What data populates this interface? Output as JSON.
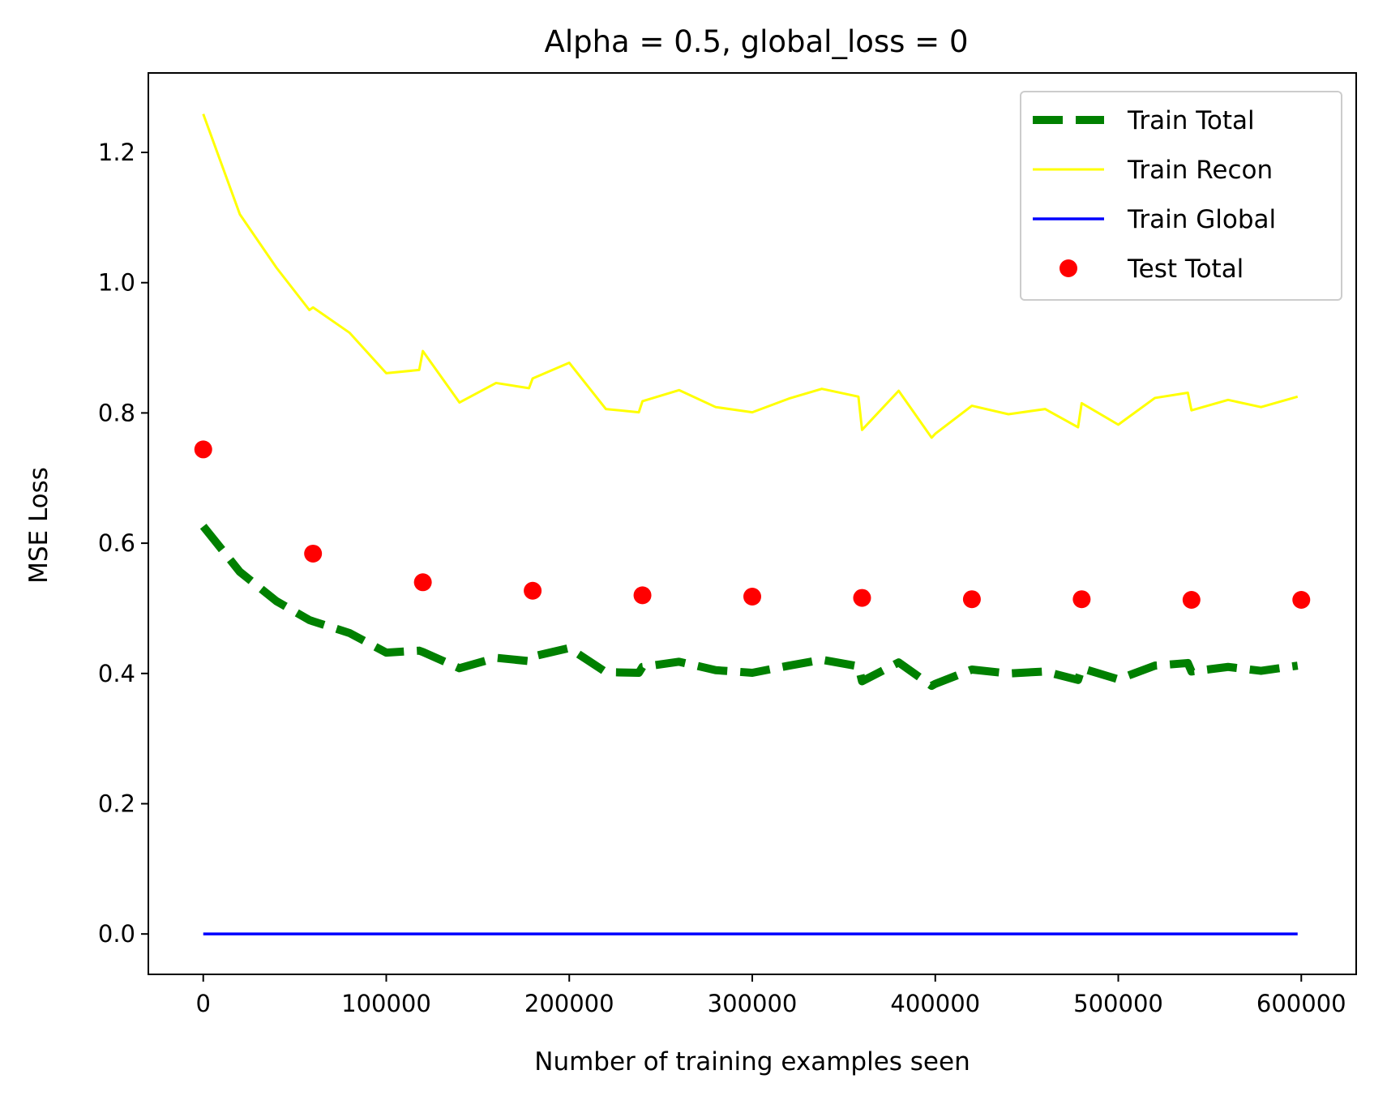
{
  "chart_data": {
    "type": "line",
    "title": "Alpha = 0.5, global_loss = 0",
    "xlabel": "Number of training examples seen",
    "ylabel": "MSE Loss",
    "xlim": [
      -30000,
      630000
    ],
    "ylim": [
      -0.062,
      1.322
    ],
    "xticks": [
      0,
      100000,
      200000,
      300000,
      400000,
      500000,
      600000
    ],
    "xtick_labels": [
      "0",
      "100000",
      "200000",
      "300000",
      "400000",
      "500000",
      "600000"
    ],
    "yticks": [
      0.0,
      0.2,
      0.4,
      0.6,
      0.8,
      1.0,
      1.2
    ],
    "ytick_labels": [
      "0.0",
      "0.2",
      "0.4",
      "0.6",
      "0.8",
      "1.0",
      "1.2"
    ],
    "legend_position": "top-right",
    "series": [
      {
        "name": "Train Total",
        "style": "dashed",
        "color": "#008000",
        "x": [
          0,
          20000,
          40000,
          58000,
          60000,
          80000,
          100000,
          118000,
          120000,
          140000,
          160000,
          178000,
          180000,
          200000,
          220000,
          238000,
          240000,
          260000,
          280000,
          300000,
          320000,
          338000,
          358000,
          360000,
          380000,
          398000,
          400000,
          420000,
          440000,
          460000,
          478000,
          480000,
          500000,
          520000,
          538000,
          540000,
          560000,
          578000,
          598000
        ],
        "values": [
          0.626,
          0.556,
          0.511,
          0.482,
          0.48,
          0.462,
          0.432,
          0.435,
          0.433,
          0.408,
          0.424,
          0.419,
          0.426,
          0.439,
          0.402,
          0.401,
          0.41,
          0.418,
          0.405,
          0.401,
          0.412,
          0.421,
          0.411,
          0.388,
          0.417,
          0.381,
          0.384,
          0.406,
          0.4,
          0.403,
          0.39,
          0.408,
          0.391,
          0.412,
          0.416,
          0.403,
          0.41,
          0.404,
          0.412
        ]
      },
      {
        "name": "Train Recon",
        "style": "solid",
        "color": "#ffff00",
        "x": [
          0,
          20000,
          40000,
          58000,
          60000,
          80000,
          100000,
          118000,
          120000,
          140000,
          160000,
          178000,
          180000,
          200000,
          220000,
          238000,
          240000,
          260000,
          280000,
          300000,
          320000,
          338000,
          358000,
          360000,
          380000,
          398000,
          400000,
          420000,
          440000,
          460000,
          478000,
          480000,
          500000,
          520000,
          538000,
          540000,
          560000,
          578000,
          598000
        ],
        "values": [
          1.259,
          1.105,
          1.023,
          0.958,
          0.962,
          0.923,
          0.861,
          0.866,
          0.895,
          0.816,
          0.846,
          0.838,
          0.853,
          0.877,
          0.806,
          0.801,
          0.818,
          0.835,
          0.809,
          0.801,
          0.822,
          0.837,
          0.825,
          0.774,
          0.834,
          0.762,
          0.768,
          0.811,
          0.798,
          0.806,
          0.778,
          0.815,
          0.782,
          0.823,
          0.831,
          0.804,
          0.82,
          0.809,
          0.825
        ]
      },
      {
        "name": "Train Global",
        "style": "solid",
        "color": "#0000ff",
        "x": [
          0,
          598000
        ],
        "values": [
          0.0,
          0.0
        ]
      },
      {
        "name": "Test Total",
        "style": "scatter",
        "color": "#ff0000",
        "x": [
          0,
          60000,
          120000,
          180000,
          240000,
          300000,
          360000,
          420000,
          480000,
          540000,
          600000
        ],
        "values": [
          0.744,
          0.584,
          0.54,
          0.527,
          0.52,
          0.518,
          0.516,
          0.514,
          0.514,
          0.513,
          0.513
        ]
      }
    ]
  }
}
